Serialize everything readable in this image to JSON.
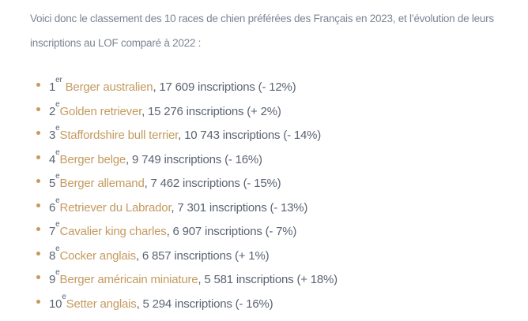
{
  "colors": {
    "background": "#ffffff",
    "intro_text": "#7d8494",
    "list_text": "#5b6373",
    "accent_gold": "#c49a5f"
  },
  "intro": {
    "full_text": "Voici donc le classement des 10 races de chien préférées des Français en 2023, et l’évolution de leurs inscriptions au LOF comparé à 2022 :",
    "lines": [
      "Voici donc le classement des 10 races de chien préférées des Français en 2023, et l’évolution de leurs",
      "inscriptions au LOF comparé à 2022 :"
    ]
  },
  "ranking": {
    "items": [
      {
        "rank": "1",
        "rank_suffix": "er",
        "separator": " ",
        "breed": "Berger australien",
        "details": ", 17 609 inscriptions (- 12%)"
      },
      {
        "rank": "2",
        "rank_suffix": "e",
        "separator": "",
        "breed": "Golden retriever",
        "details": ", 15 276 inscriptions (+ 2%)"
      },
      {
        "rank": "3",
        "rank_suffix": "e",
        "separator": "",
        "breed": "Staffordshire bull terrier",
        "details": ", 10 743 inscriptions (- 14%)"
      },
      {
        "rank": "4",
        "rank_suffix": "e",
        "separator": "",
        "breed": "Berger belge",
        "details": ", 9 749 inscriptions (- 16%)"
      },
      {
        "rank": "5",
        "rank_suffix": "e",
        "separator": "",
        "breed": "Berger allemand",
        "details": ", 7 462 inscriptions (- 15%)"
      },
      {
        "rank": "6",
        "rank_suffix": "e",
        "separator": "",
        "breed": "Retriever du Labrador",
        "details": ", 7 301 inscriptions (- 13%)"
      },
      {
        "rank": "7",
        "rank_suffix": "e",
        "separator": "",
        "breed": "Cavalier king charles",
        "details": ", 6 907 inscriptions (- 7%)"
      },
      {
        "rank": "8",
        "rank_suffix": "e",
        "separator": "",
        "breed": "Cocker anglais",
        "details": ", 6 857 inscriptions (+ 1%)"
      },
      {
        "rank": "9",
        "rank_suffix": "e",
        "separator": "",
        "breed": "Berger américain miniature",
        "details": ", 5 581 inscriptions (+ 18%)"
      },
      {
        "rank": "10",
        "rank_suffix": "e",
        "separator": "",
        "breed": "Setter anglais",
        "details": ", 5 294 inscriptions (- 16%)"
      }
    ]
  }
}
